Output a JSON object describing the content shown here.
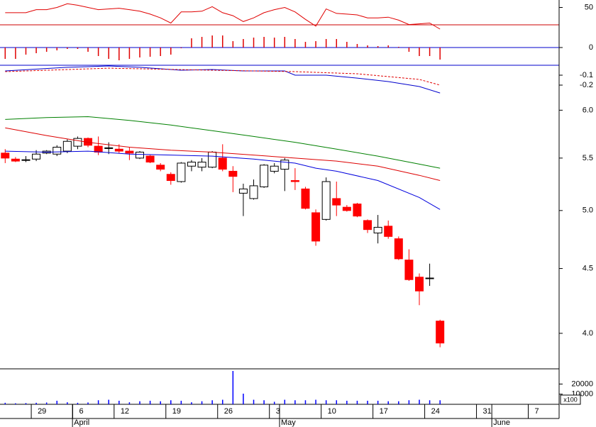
{
  "chart_data": [
    {
      "type": "line",
      "xlim": [
        -0.5,
        53.5
      ],
      "ylim": [
        20,
        60
      ],
      "yticks": [
        50
      ],
      "series": [
        {
          "color": "#e00000",
          "x": [
            0,
            1,
            2,
            3,
            4,
            5,
            6,
            7,
            8,
            9,
            10,
            11,
            12,
            13,
            14,
            15,
            16,
            17,
            18,
            19,
            20,
            21,
            22,
            23,
            24,
            25,
            26,
            27,
            28,
            29,
            30,
            31,
            32,
            33,
            34,
            35,
            36,
            37,
            38,
            39,
            40,
            41,
            42
          ],
          "values": [
            43,
            43,
            43,
            47,
            47,
            50,
            55,
            53,
            50,
            47,
            48,
            49,
            47,
            45,
            41,
            36,
            29,
            44,
            44,
            45,
            51,
            43,
            39,
            31,
            36,
            43,
            47,
            50,
            44,
            34,
            25,
            48,
            42,
            41,
            40,
            36,
            36,
            37,
            33,
            27,
            28,
            29,
            21
          ]
        }
      ]
    },
    {
      "type": "bar",
      "xlim": [
        -0.5,
        53.5
      ],
      "ylim": [
        -0.05,
        0.05
      ],
      "yticks": [
        0
      ],
      "color": "#e00000",
      "x": [
        0,
        1,
        2,
        3,
        4,
        5,
        6,
        7,
        8,
        9,
        10,
        11,
        12,
        13,
        14,
        15,
        16,
        17,
        18,
        19,
        20,
        21,
        22,
        23,
        24,
        25,
        26,
        27,
        28,
        29,
        30,
        31,
        32,
        33,
        34,
        35,
        36,
        37,
        38,
        39,
        40,
        41,
        42
      ],
      "values": [
        -0.032,
        -0.032,
        -0.02,
        -0.016,
        -0.012,
        -0.008,
        -0.004,
        -0.004,
        -0.012,
        -0.024,
        -0.032,
        -0.036,
        -0.032,
        -0.028,
        -0.026,
        -0.024,
        -0.02,
        -0.002,
        0.026,
        0.03,
        0.034,
        0.034,
        0.018,
        0.024,
        0.028,
        0.03,
        0.028,
        0.03,
        0.024,
        0.016,
        0.018,
        0.024,
        0.024,
        0.016,
        0.01,
        0.006,
        0.004,
        0.006,
        0.002,
        -0.012,
        -0.024,
        -0.024,
        -0.034
      ]
    },
    {
      "type": "line",
      "xlim": [
        -0.5,
        53.5
      ],
      "ylim": [
        -0.34,
        0
      ],
      "yticks": [
        -0.1,
        -0.2
      ],
      "series": [
        {
          "color": "#0000cc",
          "x": [
            0,
            6,
            10,
            13,
            17,
            20,
            23,
            27,
            28,
            31,
            34,
            37,
            40,
            42
          ],
          "values": [
            -0.057,
            -0.021,
            -0.007,
            -0.021,
            -0.05,
            -0.043,
            -0.057,
            -0.057,
            -0.1,
            -0.1,
            -0.129,
            -0.164,
            -0.214,
            -0.279
          ]
        },
        {
          "color": "#e00000",
          "dashed": true,
          "x": [
            0,
            10,
            20,
            28,
            34,
            40,
            42
          ],
          "values": [
            -0.064,
            -0.029,
            -0.05,
            -0.064,
            -0.086,
            -0.143,
            -0.2
          ]
        }
      ]
    },
    {
      "type": "candlestick",
      "xlim": [
        -0.5,
        53.5
      ],
      "ylim": [
        3.75,
        6.12
      ],
      "log_scale": true,
      "yticks": [
        {
          "value": 6,
          "label": "6.0"
        },
        5.5,
        {
          "value": 5,
          "label": "5.0"
        },
        4.5,
        {
          "value": 4,
          "label": "4.0"
        }
      ],
      "up_color": "#ffffff",
      "down_color": "#ff0000",
      "doji_color": "#000000",
      "x": [
        0,
        1,
        2,
        3,
        4,
        5,
        6,
        7,
        8,
        9,
        10,
        11,
        12,
        13,
        14,
        15,
        16,
        17,
        18,
        19,
        20,
        21,
        22,
        23,
        24,
        25,
        26,
        27,
        28,
        29,
        30,
        31,
        32,
        33,
        34,
        35,
        36,
        37,
        38,
        39,
        40,
        41,
        42
      ],
      "open": [
        5.55,
        5.49,
        5.48,
        5.49,
        5.55,
        5.54,
        5.57,
        5.62,
        5.7,
        5.62,
        5.6,
        5.59,
        5.57,
        5.5,
        5.52,
        5.43,
        5.34,
        5.27,
        5.42,
        5.41,
        5.41,
        5.5,
        5.37,
        5.16,
        5.11,
        5.22,
        5.37,
        5.39,
        5.28,
        5.2,
        4.98,
        4.92,
        5.11,
        5.03,
        5.06,
        4.91,
        4.8,
        4.86,
        4.75,
        4.57,
        4.43,
        4.42,
        4.09
      ],
      "high": [
        5.59,
        5.51,
        5.52,
        5.58,
        5.58,
        5.63,
        5.69,
        5.72,
        5.71,
        5.72,
        5.66,
        5.64,
        5.61,
        5.57,
        5.53,
        5.45,
        5.36,
        5.46,
        5.48,
        5.5,
        5.57,
        5.64,
        5.42,
        5.25,
        5.29,
        5.44,
        5.45,
        5.5,
        5.4,
        5.22,
        5.01,
        5.31,
        5.27,
        5.05,
        5.07,
        4.92,
        4.96,
        4.91,
        4.77,
        4.66,
        4.46,
        4.54,
        4.1
      ],
      "low": [
        5.45,
        5.46,
        5.46,
        5.47,
        5.54,
        5.52,
        5.55,
        5.59,
        5.61,
        5.53,
        5.54,
        5.55,
        5.48,
        5.49,
        5.45,
        5.37,
        5.24,
        5.26,
        5.37,
        5.37,
        5.4,
        5.37,
        5.17,
        4.95,
        5.1,
        5.21,
        5.35,
        5.18,
        5.19,
        5.01,
        4.69,
        4.91,
        4.95,
        4.99,
        4.94,
        4.8,
        4.71,
        4.75,
        4.57,
        4.4,
        4.21,
        4.36,
        3.9
      ],
      "close": [
        5.5,
        5.47,
        5.48,
        5.54,
        5.57,
        5.61,
        5.67,
        5.7,
        5.63,
        5.56,
        5.6,
        5.57,
        5.55,
        5.56,
        5.46,
        5.39,
        5.28,
        5.45,
        5.46,
        5.46,
        5.56,
        5.39,
        5.32,
        5.2,
        5.23,
        5.43,
        5.42,
        5.48,
        5.27,
        5.02,
        4.73,
        5.27,
        5.05,
        5.0,
        4.95,
        4.83,
        4.85,
        4.77,
        4.58,
        4.41,
        4.32,
        4.42,
        3.93
      ],
      "series": [
        {
          "color": "#0000dd",
          "x": [
            0,
            4,
            8,
            12,
            16,
            20,
            24,
            28,
            30,
            32,
            36,
            40,
            42
          ],
          "values": [
            5.57,
            5.56,
            5.57,
            5.54,
            5.53,
            5.52,
            5.49,
            5.45,
            5.4,
            5.37,
            5.28,
            5.12,
            5.01
          ]
        },
        {
          "color": "#dd0000",
          "x": [
            0,
            4,
            8,
            12,
            16,
            20,
            24,
            28,
            32,
            36,
            40,
            42
          ],
          "values": [
            5.81,
            5.73,
            5.66,
            5.61,
            5.58,
            5.56,
            5.53,
            5.5,
            5.47,
            5.42,
            5.33,
            5.28
          ]
        },
        {
          "color": "#008000",
          "x": [
            0,
            4,
            8,
            12,
            16,
            20,
            24,
            28,
            32,
            36,
            40,
            42
          ],
          "values": [
            5.9,
            5.92,
            5.93,
            5.89,
            5.84,
            5.78,
            5.72,
            5.66,
            5.59,
            5.52,
            5.44,
            5.4
          ]
        }
      ]
    },
    {
      "type": "bar",
      "xlim": [
        -0.5,
        53.5
      ],
      "ylim": [
        0,
        35000
      ],
      "yticks": [
        20000,
        10000
      ],
      "unit_label": "x100",
      "color": "#0000ff",
      "x": [
        0,
        1,
        2,
        3,
        4,
        5,
        6,
        7,
        8,
        9,
        10,
        11,
        12,
        13,
        14,
        15,
        16,
        17,
        18,
        19,
        20,
        21,
        22,
        23,
        24,
        25,
        26,
        27,
        28,
        29,
        30,
        31,
        32,
        33,
        34,
        35,
        36,
        37,
        38,
        39,
        40,
        41,
        42
      ],
      "values": [
        1500,
        1000,
        1200,
        1500,
        1800,
        3500,
        2000,
        1500,
        1800,
        4000,
        4500,
        3500,
        2000,
        3000,
        3500,
        3000,
        4000,
        3500,
        2000,
        3000,
        4000,
        4500,
        32900,
        10500,
        4500,
        4000,
        2500,
        4500,
        4000,
        4000,
        4500,
        4000,
        4000,
        3500,
        3500,
        3500,
        3500,
        3000,
        3000,
        4000,
        4500,
        4000,
        4000
      ],
      "xticks": [
        {
          "value": 3,
          "label": "29"
        },
        {
          "value": 7,
          "label": "6"
        },
        {
          "value": 11,
          "label": "12"
        },
        {
          "value": 16,
          "label": "19"
        },
        {
          "value": 21,
          "label": "26"
        },
        {
          "value": 26,
          "label": "3"
        },
        {
          "value": 31,
          "label": "10"
        },
        {
          "value": 36,
          "label": "17"
        },
        {
          "value": 41,
          "label": "24"
        },
        {
          "value": 46,
          "label": "31"
        },
        {
          "value": 51,
          "label": "7"
        }
      ],
      "month_ticks": [
        {
          "value": 6.5,
          "label": "April"
        },
        {
          "value": 26.5,
          "label": "May"
        },
        {
          "value": 47,
          "label": "June"
        }
      ]
    }
  ]
}
